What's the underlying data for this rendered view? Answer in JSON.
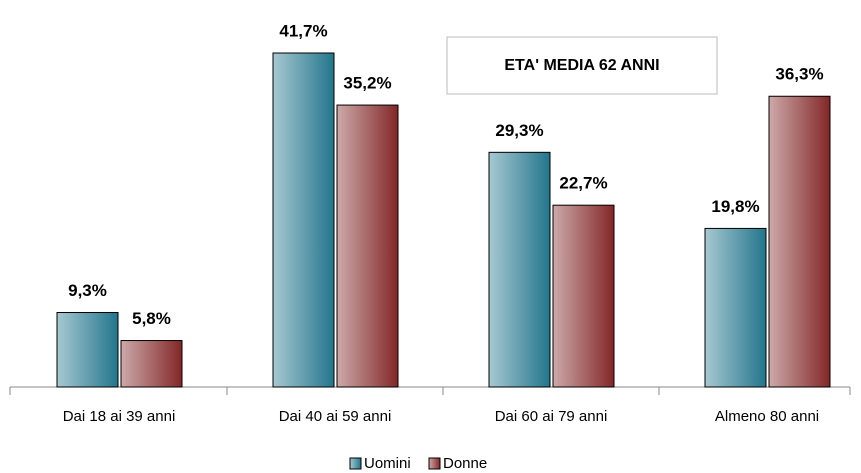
{
  "chart_data": {
    "type": "bar",
    "annotation": "ETA' MEDIA 62 ANNI",
    "categories": [
      "Dai 18 ai 39 anni",
      "Dai 40 ai 59 anni",
      "Dai 60 ai 79 anni",
      "Almeno 80 anni"
    ],
    "series": [
      {
        "name": "Uomini",
        "color": "#23758c",
        "values": [
          9.3,
          41.7,
          29.3,
          19.8
        ],
        "value_labels": [
          "9,3%",
          "41,7%",
          "29,3%",
          "19,8%"
        ]
      },
      {
        "name": "Donne",
        "color": "#832727",
        "values": [
          5.8,
          35.2,
          22.7,
          36.3
        ],
        "value_labels": [
          "5,8%",
          "35,2%",
          "22,7%",
          "36,3%"
        ]
      }
    ],
    "legend": "bottom",
    "grid": false
  }
}
